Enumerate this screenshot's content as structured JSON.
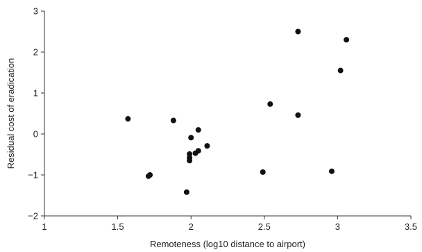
{
  "chart_data": {
    "type": "scatter",
    "title": "",
    "xlabel": "Remoteness (log10 distance to airport)",
    "ylabel": "Residual cost of eradication",
    "xlim": [
      1,
      3.5
    ],
    "ylim": [
      -2,
      3
    ],
    "xticks": [
      "1",
      "1.5",
      "2",
      "2.5",
      "3",
      "3.5"
    ],
    "yticks": [
      "−2",
      "−1",
      "0",
      "1",
      "2",
      "3"
    ],
    "grid": false,
    "marker_color": "#111111",
    "points": [
      {
        "x": 1.57,
        "y": 0.37
      },
      {
        "x": 1.71,
        "y": -1.03
      },
      {
        "x": 1.72,
        "y": -1.0
      },
      {
        "x": 1.88,
        "y": 0.33
      },
      {
        "x": 1.97,
        "y": -1.42
      },
      {
        "x": 1.99,
        "y": -0.49
      },
      {
        "x": 1.99,
        "y": -0.58
      },
      {
        "x": 1.99,
        "y": -0.65
      },
      {
        "x": 2.0,
        "y": -0.09
      },
      {
        "x": 2.03,
        "y": -0.47
      },
      {
        "x": 2.05,
        "y": -0.41
      },
      {
        "x": 2.05,
        "y": 0.1
      },
      {
        "x": 2.11,
        "y": -0.29
      },
      {
        "x": 2.49,
        "y": -0.93
      },
      {
        "x": 2.54,
        "y": 0.73
      },
      {
        "x": 2.73,
        "y": 2.5
      },
      {
        "x": 2.73,
        "y": 0.46
      },
      {
        "x": 2.96,
        "y": -0.91
      },
      {
        "x": 3.02,
        "y": 1.55
      },
      {
        "x": 3.06,
        "y": 2.3
      }
    ]
  }
}
